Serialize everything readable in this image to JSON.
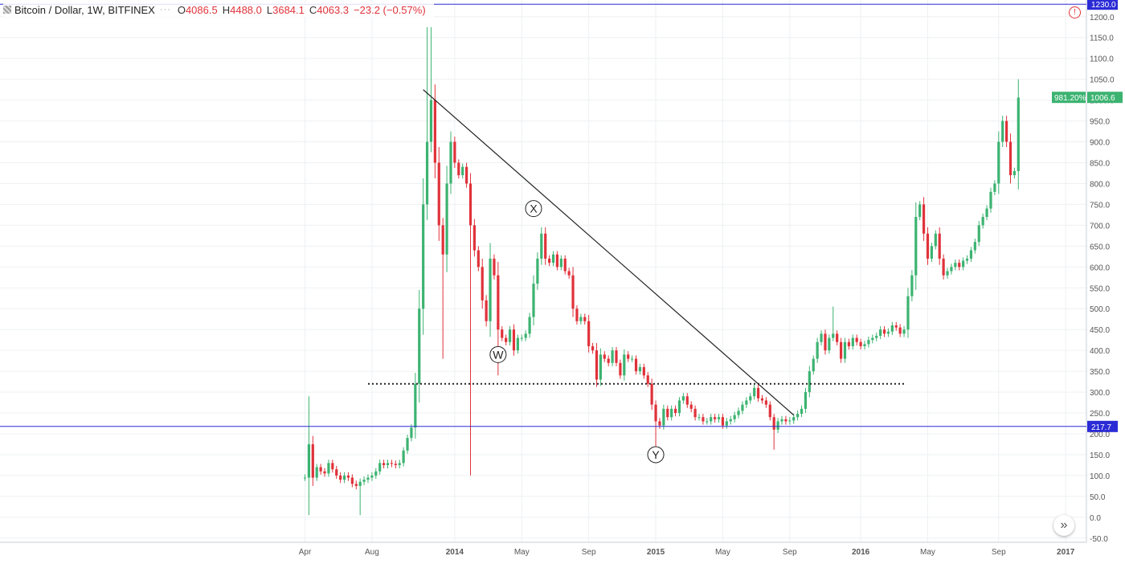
{
  "header": {
    "title": "Bitcoin / Dollar, 1W, BITFINEX",
    "menu_dots": "···",
    "ohlc": [
      {
        "label": "O",
        "value": "4086.5"
      },
      {
        "label": "H",
        "value": "4488.0"
      },
      {
        "label": "L",
        "value": "3684.1"
      },
      {
        "label": "C",
        "value": "4063.3"
      }
    ],
    "change": "−23.2 (−0.57%)"
  },
  "icons": {
    "alert": "alert-icon",
    "navigate": "chevron-double-right-icon"
  },
  "alert_glyph": "!",
  "nav_glyph": "»",
  "colors": {
    "up": "#3cb371",
    "down": "#e0323a",
    "grid": "#eef0f3",
    "axis_text": "#555555",
    "hline": "#2b2bd6",
    "pct_badge": "#3cb371"
  },
  "chart_data": {
    "type": "candlestick",
    "ylim": [
      -60,
      1240
    ],
    "y_ticks": [
      -50,
      0,
      50,
      100,
      150,
      200,
      250,
      300,
      350,
      400,
      450,
      500,
      550,
      600,
      650,
      700,
      750,
      800,
      850,
      900,
      950,
      1000,
      1050,
      1100,
      1150,
      1200
    ],
    "x_ticks": [
      {
        "label": "Apr",
        "week": 0,
        "bold": false
      },
      {
        "label": "Aug",
        "week": 17,
        "bold": false
      },
      {
        "label": "2014",
        "week": 38,
        "bold": true
      },
      {
        "label": "May",
        "week": 55,
        "bold": false
      },
      {
        "label": "Sep",
        "week": 72,
        "bold": false
      },
      {
        "label": "2015",
        "week": 89,
        "bold": true
      },
      {
        "label": "May",
        "week": 106,
        "bold": false
      },
      {
        "label": "Sep",
        "week": 123,
        "bold": false
      },
      {
        "label": "2016",
        "week": 141,
        "bold": true
      },
      {
        "label": "May",
        "week": 158,
        "bold": false
      },
      {
        "label": "Sep",
        "week": 176,
        "bold": false
      },
      {
        "label": "2017",
        "week": 193,
        "bold": true
      }
    ],
    "closes": [
      95,
      175,
      95,
      120,
      110,
      105,
      130,
      115,
      100,
      90,
      100,
      95,
      80,
      75,
      85,
      90,
      95,
      100,
      110,
      130,
      125,
      130,
      128,
      125,
      130,
      160,
      190,
      215,
      320,
      500,
      750,
      900,
      1000,
      850,
      700,
      630,
      800,
      900,
      850,
      820,
      840,
      800,
      700,
      640,
      600,
      520,
      470,
      620,
      580,
      450,
      430,
      420,
      450,
      400,
      430,
      430,
      440,
      480,
      560,
      620,
      680,
      620,
      610,
      630,
      600,
      620,
      590,
      580,
      500,
      470,
      480,
      470,
      410,
      400,
      330,
      390,
      380,
      370,
      400,
      370,
      340,
      390,
      380,
      380,
      350,
      360,
      340,
      320,
      270,
      230,
      220,
      260,
      240,
      260,
      250,
      280,
      290,
      270,
      260,
      240,
      240,
      230,
      230,
      240,
      235,
      240,
      220,
      230,
      235,
      245,
      255,
      270,
      280,
      290,
      310,
      285,
      280,
      270,
      240,
      210,
      230,
      235,
      230,
      232,
      240,
      248,
      260,
      300,
      350,
      380,
      420,
      440,
      400,
      430,
      440,
      420,
      380,
      420,
      410,
      430,
      420,
      410,
      415,
      425,
      430,
      435,
      450,
      440,
      445,
      460,
      455,
      440,
      450,
      530,
      580,
      720,
      750,
      680,
      620,
      650,
      680,
      620,
      580,
      590,
      600,
      610,
      600,
      615,
      620,
      640,
      660,
      700,
      720,
      740,
      780,
      800,
      900,
      950,
      900,
      820,
      830,
      1006
    ],
    "open_series": [
      95,
      95,
      175,
      95,
      120,
      110,
      105,
      130,
      115,
      100,
      90,
      100,
      95,
      80,
      75,
      85,
      90,
      95,
      100,
      110,
      130,
      125,
      130,
      128,
      125,
      130,
      160,
      190,
      215,
      320,
      500,
      750,
      900,
      1000,
      850,
      700,
      630,
      800,
      900,
      850,
      820,
      840,
      800,
      700,
      640,
      600,
      520,
      470,
      620,
      580,
      450,
      430,
      420,
      450,
      400,
      430,
      430,
      440,
      480,
      560,
      620,
      680,
      620,
      610,
      630,
      600,
      620,
      590,
      580,
      500,
      470,
      480,
      470,
      410,
      400,
      330,
      390,
      380,
      370,
      400,
      370,
      340,
      390,
      380,
      380,
      350,
      360,
      340,
      320,
      270,
      230,
      220,
      260,
      240,
      260,
      250,
      280,
      290,
      270,
      260,
      240,
      240,
      230,
      230,
      240,
      235,
      240,
      220,
      230,
      235,
      245,
      255,
      270,
      280,
      290,
      310,
      285,
      280,
      270,
      240,
      210,
      230,
      235,
      230,
      232,
      240,
      248,
      260,
      300,
      350,
      380,
      420,
      440,
      400,
      430,
      440,
      420,
      380,
      420,
      410,
      430,
      420,
      410,
      415,
      425,
      430,
      435,
      450,
      440,
      445,
      460,
      455,
      440,
      450,
      530,
      580,
      720,
      750,
      680,
      620,
      650,
      680,
      620,
      580,
      590,
      600,
      610,
      600,
      615,
      620,
      640,
      660,
      700,
      720,
      740,
      780,
      800,
      900,
      950,
      900,
      820,
      830
    ],
    "wick_extremes": [
      {
        "week": 1,
        "high": 290,
        "low": 5
      },
      {
        "week": 14,
        "low": 5
      },
      {
        "week": 31,
        "high": 1175
      },
      {
        "week": 32,
        "high": 1175
      },
      {
        "week": 35,
        "low": 380
      },
      {
        "week": 42,
        "low": 100
      },
      {
        "week": 49,
        "low": 340
      },
      {
        "week": 89,
        "low": 166
      },
      {
        "week": 119,
        "low": 162
      },
      {
        "week": 134,
        "high": 505
      },
      {
        "week": 192,
        "high": 1165
      },
      {
        "week": 194,
        "low": 740
      }
    ],
    "annotations": [
      {
        "label": "W",
        "week": 49,
        "value": 390
      },
      {
        "label": "X",
        "week": 58,
        "value": 740
      },
      {
        "label": "Y",
        "week": 89,
        "value": 150
      }
    ],
    "trendline": {
      "from": {
        "week": 30,
        "value": 1025
      },
      "to": {
        "week": 124,
        "value": 245
      }
    },
    "support_line": {
      "from_week": 16,
      "to_week": 152,
      "value": 320
    },
    "horizontal_lines": [
      {
        "value": 1230,
        "label": "1230.0"
      },
      {
        "value": 217.7,
        "label": "217.7"
      }
    ],
    "last_price": {
      "value": 1006.6,
      "label": "1006.6",
      "pct_label": "981.20%"
    }
  }
}
